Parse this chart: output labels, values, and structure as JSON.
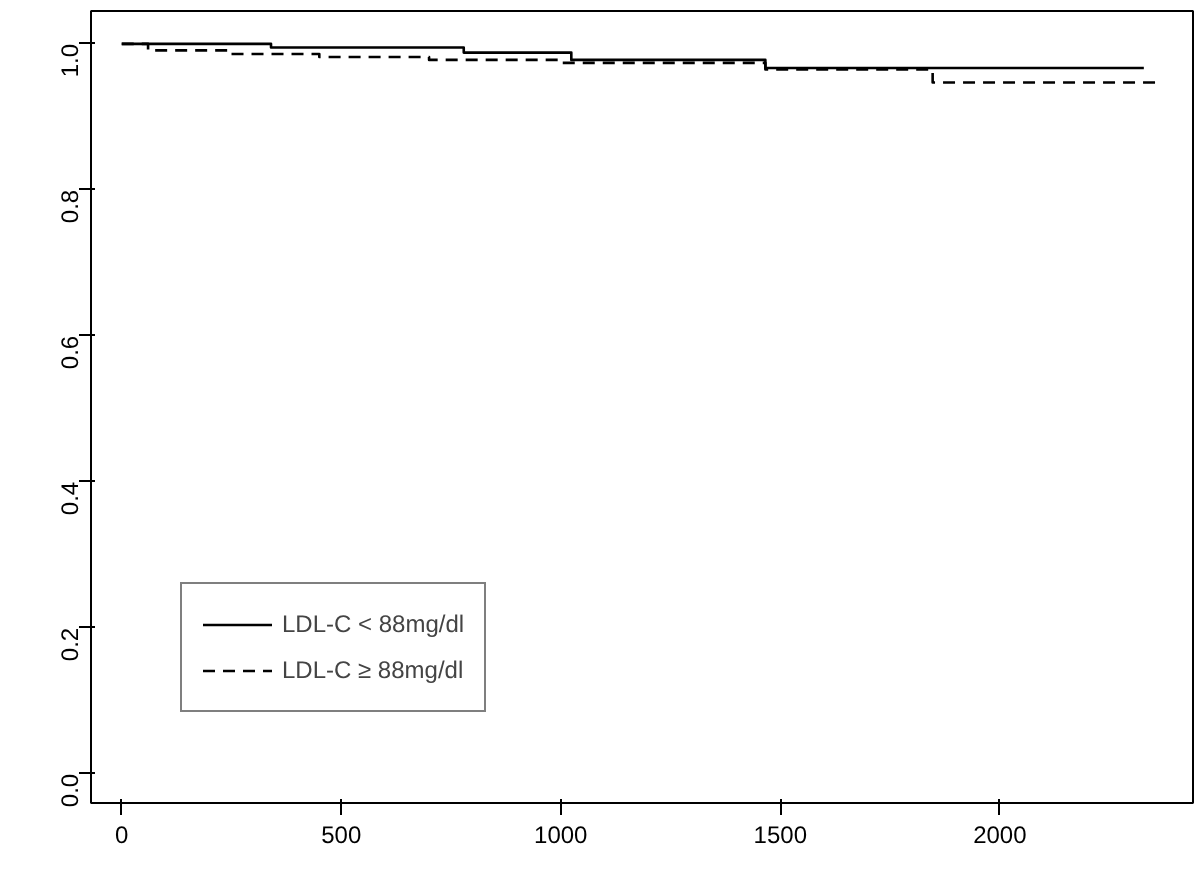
{
  "chart_data": {
    "type": "step",
    "xlim": [
      -70,
      2440
    ],
    "ylim": [
      -0.04,
      1.045
    ],
    "xticks": [
      0,
      500,
      1000,
      1500,
      2000
    ],
    "yticks": [
      {
        "value": 0,
        "label": "0.0"
      },
      {
        "value": 0.2,
        "label": "0.2"
      },
      {
        "value": 0.4,
        "label": "0.4"
      },
      {
        "value": 0.6,
        "label": "0.6"
      },
      {
        "value": 0.8,
        "label": "0.8"
      },
      {
        "value": 1,
        "label": "1.0"
      }
    ],
    "grid": false,
    "legend": "bottom left",
    "marker": "none",
    "series": [
      {
        "name": "LDL-C < 88mg/dl",
        "color": "#000000",
        "line_style": "solid",
        "x": [
          0,
          340,
          779,
          1024,
          1466,
          2328
        ],
        "values": [
          1.0,
          0.995,
          0.988,
          0.978,
          0.967,
          0.967
        ]
      },
      {
        "name": "LDL-C ≥ 88mg/dl",
        "color": "#000000",
        "line_style": "dashed",
        "x": [
          0,
          60,
          250,
          450,
          700,
          1000,
          1466,
          1847,
          2363
        ],
        "values": [
          1.0,
          0.991,
          0.986,
          0.982,
          0.978,
          0.974,
          0.965,
          0.947,
          0.947
        ]
      }
    ]
  }
}
